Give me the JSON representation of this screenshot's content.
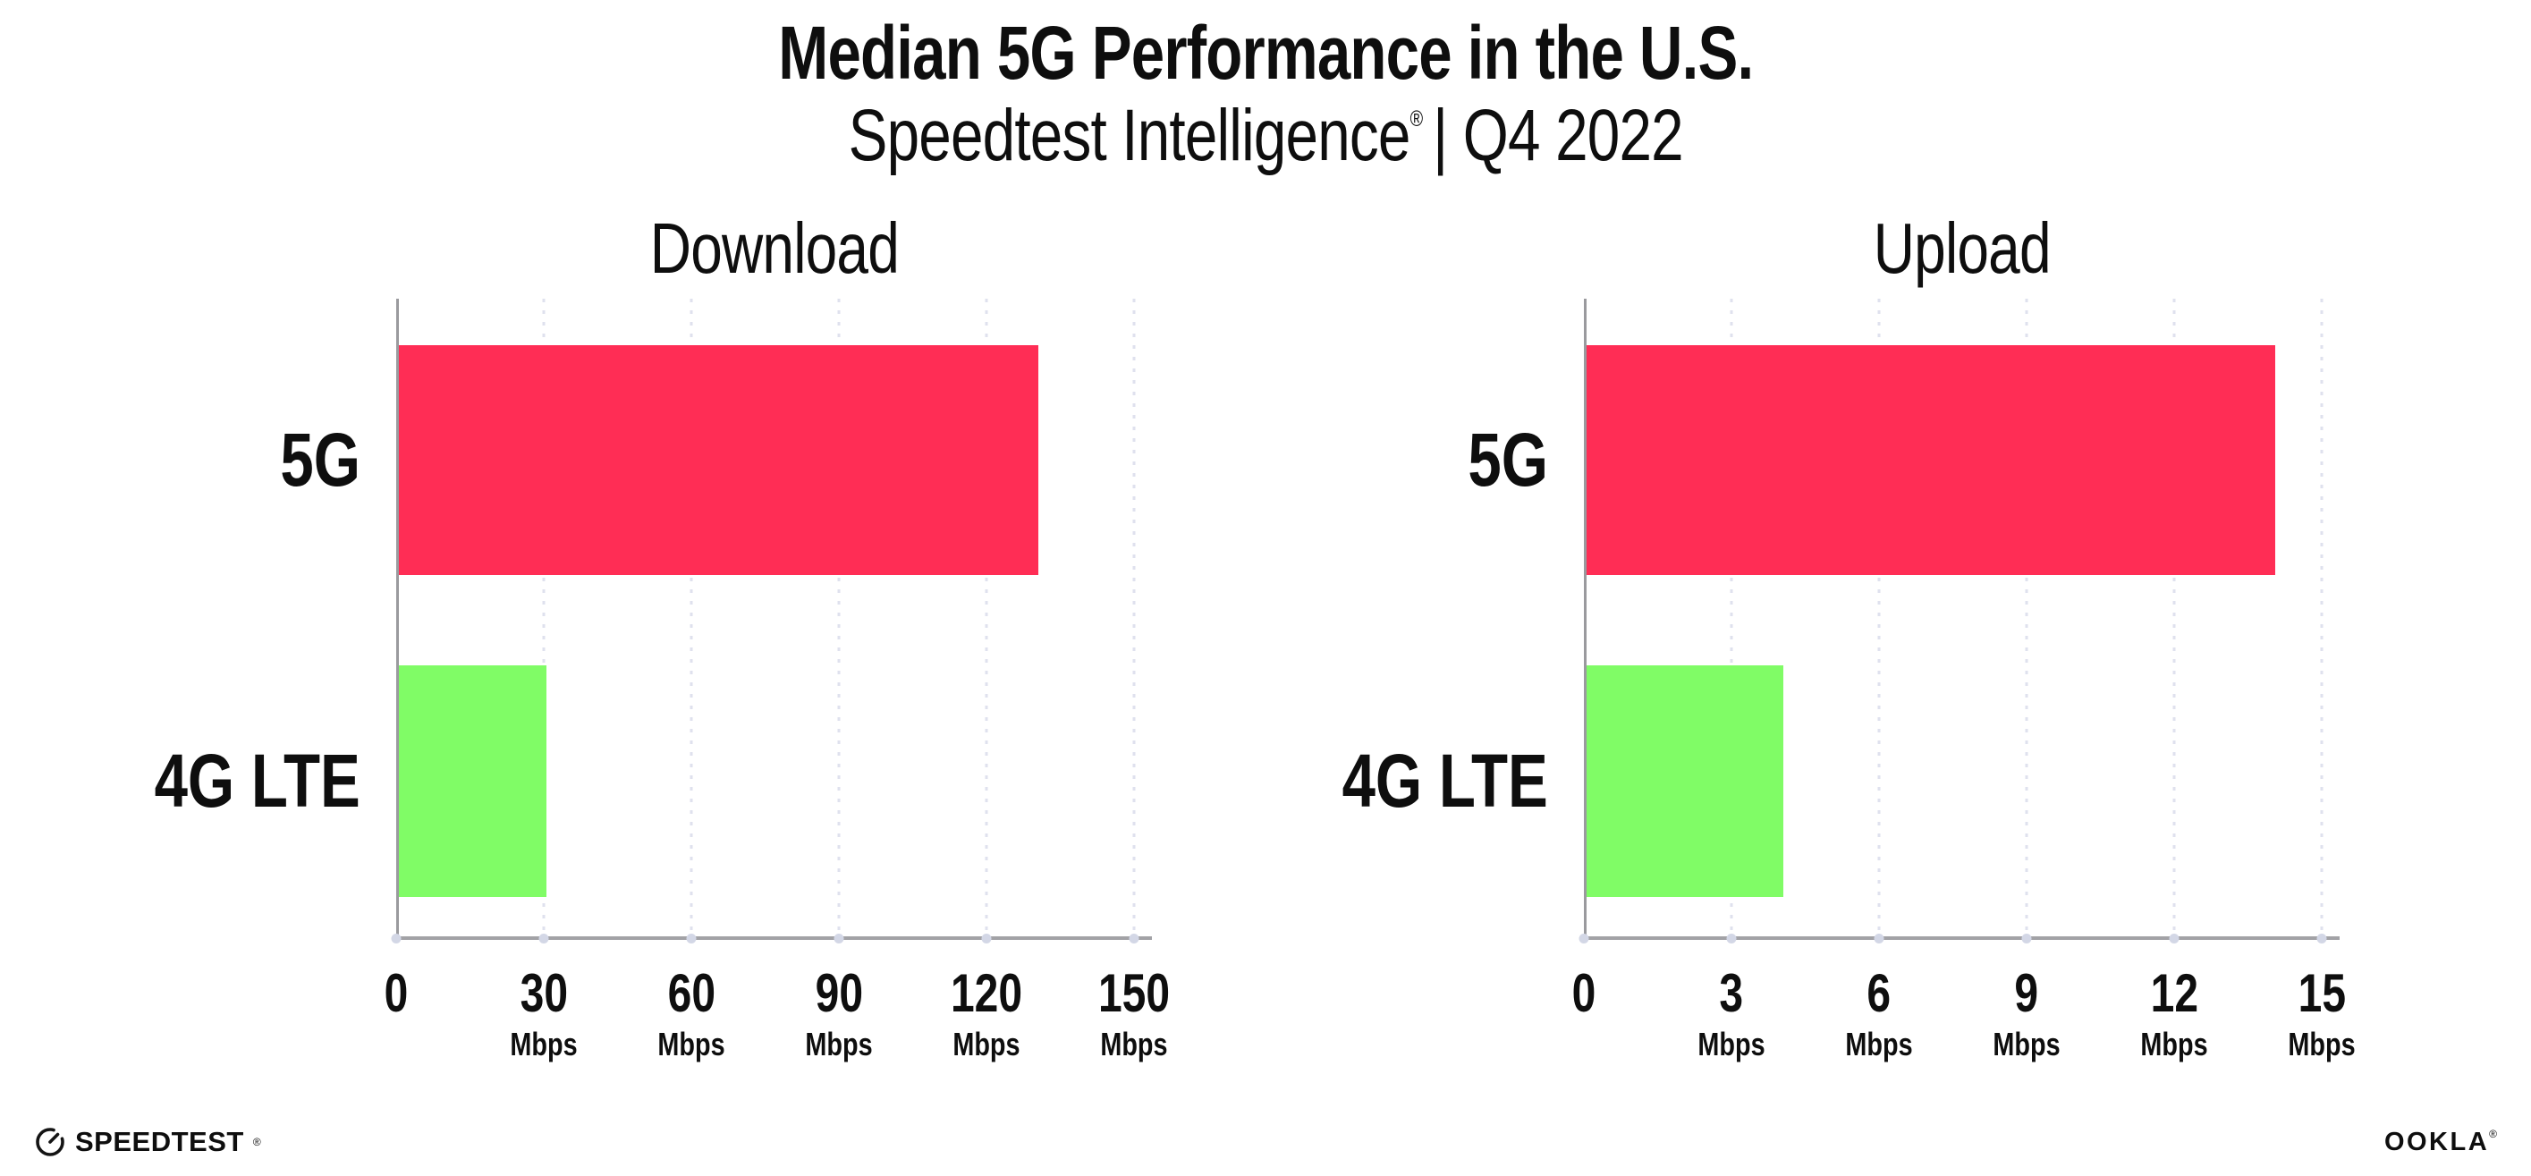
{
  "header": {
    "title": "Median 5G Performance in the U.S.",
    "subtitle": {
      "brand": "Speedtest Intelligence",
      "registered_mark": "®",
      "period": "| Q4 2022"
    }
  },
  "chart_data": [
    {
      "type": "bar",
      "orientation": "horizontal",
      "title": "Download",
      "categories": [
        "5G",
        "4G LTE"
      ],
      "values": [
        130,
        30
      ],
      "value_unit": "Mbps",
      "xlim": [
        0,
        150
      ],
      "xticks": [
        0,
        30,
        60,
        90,
        120,
        150
      ],
      "xtick_unit": "Mbps",
      "xtick_unit_shown_on_zero": false,
      "bar_colors": [
        "#ff2d55",
        "#80fc66"
      ],
      "grid": "vertical-dotted",
      "gridline_color": "#dfe1ee",
      "legend": "none"
    },
    {
      "type": "bar",
      "orientation": "horizontal",
      "title": "Upload",
      "categories": [
        "5G",
        "4G LTE"
      ],
      "values": [
        14,
        4
      ],
      "value_unit": "Mbps",
      "xlim": [
        0,
        15
      ],
      "xticks": [
        0,
        3,
        6,
        9,
        12,
        15
      ],
      "xtick_unit": "Mbps",
      "xtick_unit_shown_on_zero": false,
      "bar_colors": [
        "#ff2d55",
        "#80fc66"
      ],
      "grid": "vertical-dotted",
      "gridline_color": "#dfe1ee",
      "legend": "none"
    }
  ],
  "footer": {
    "speedtest_logo_text": "SPEEDTEST",
    "speedtest_mark": "®",
    "ookla_logo_text": "OOKLA",
    "ookla_mark": "®"
  }
}
